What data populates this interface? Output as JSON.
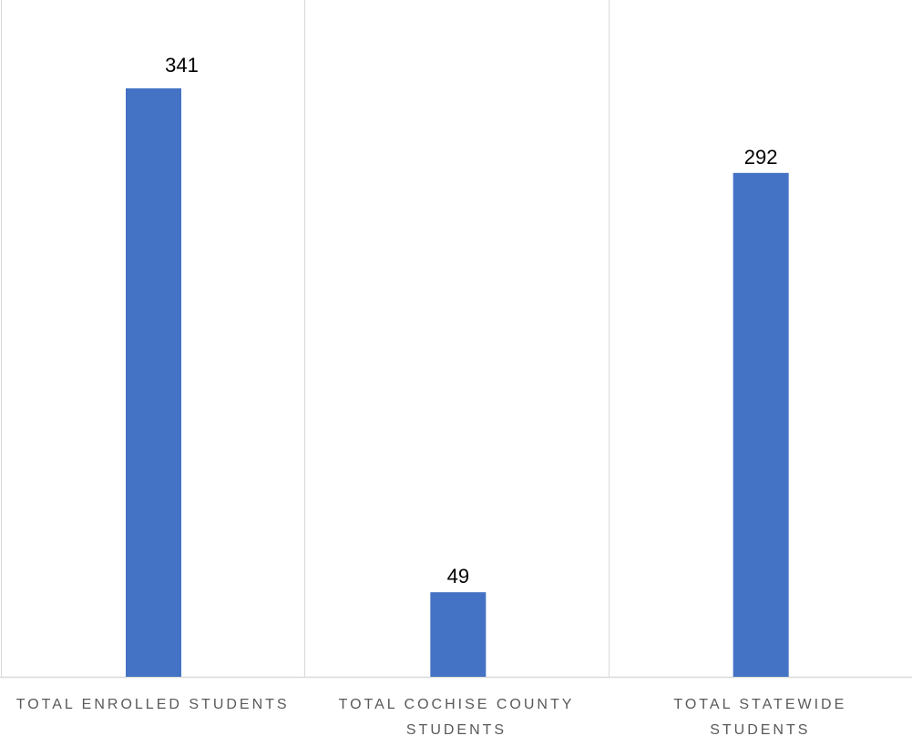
{
  "chart_data": {
    "type": "bar",
    "title": "",
    "xlabel": "",
    "ylabel": "",
    "categories": [
      [
        "TOTAL ENROLLED STUDENTS"
      ],
      [
        "TOTAL COCHISE COUNTY",
        "STUDENTS"
      ],
      [
        "TOTAL STATEWIDE",
        "STUDENTS"
      ]
    ],
    "values": [
      341,
      49,
      292
    ],
    "data_labels": [
      "341",
      "49",
      "292"
    ],
    "ylim": [
      0,
      341
    ],
    "grid": "vertical separators",
    "legend": "none",
    "colors": {
      "bar": "#4472C4",
      "gridline": "#D9D9D9",
      "axis": "#D9D9D9",
      "tick_text": "#595959",
      "data_label_text": "#000000"
    }
  }
}
